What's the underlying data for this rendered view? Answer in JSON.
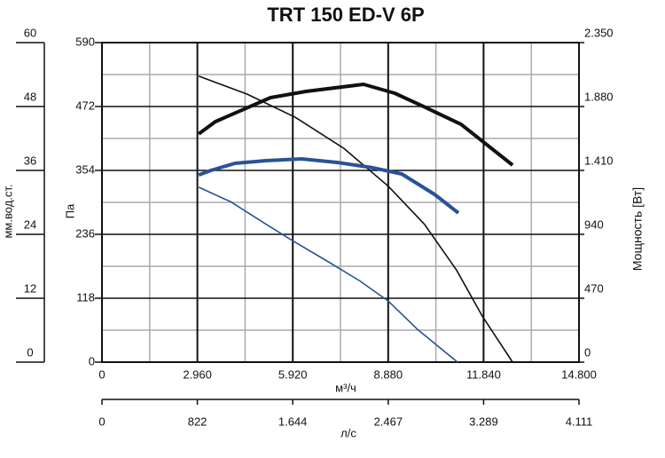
{
  "chart_data": {
    "type": "line",
    "title": "TRT 150 ED-V 6P",
    "xlabel": "м³/ч",
    "xlim": [
      0,
      14800
    ],
    "xticks": [
      0,
      {
        "value": 2960,
        "label": "2.960"
      },
      {
        "value": 5920,
        "label": "5.920"
      },
      {
        "value": 8880,
        "label": "8.880"
      },
      {
        "value": 11840,
        "label": "11.840"
      },
      {
        "value": 14800,
        "label": "14.800"
      }
    ],
    "x2label": "л/с",
    "x2lim": [
      0,
      4111
    ],
    "x2ticks": [
      0,
      822,
      {
        "value": 1644,
        "label": "1.644"
      },
      {
        "value": 2467,
        "label": "2.467"
      },
      {
        "value": 3289,
        "label": "3.289"
      },
      {
        "value": 4111,
        "label": "4.111"
      }
    ],
    "ylabel": "Па",
    "ylim": [
      0,
      590
    ],
    "yticks": [
      0,
      118,
      236,
      354,
      472,
      590
    ],
    "y3label": "мм.вод.ст.",
    "y3lim": [
      0,
      60
    ],
    "y3ticks": [
      0,
      12,
      24,
      36,
      48,
      60
    ],
    "y2label": "Мощность [Вт]",
    "y2lim": [
      0,
      2350
    ],
    "y2ticks": [
      0,
      470,
      940,
      {
        "value": 1410,
        "label": "1.410"
      },
      {
        "value": 1880,
        "label": "1.880"
      },
      {
        "value": 2350,
        "label": "2.350"
      }
    ],
    "grid": true,
    "series": [
      {
        "color": "#111111",
        "axis": "y",
        "x": [
          3000,
          4500,
          6000,
          7500,
          8880,
          10000,
          11000,
          11800,
          12740
        ],
        "values": [
          528,
          495,
          452,
          395,
          325,
          255,
          170,
          85,
          0
        ]
      },
      {
        "color": "#2a5298",
        "axis": "y",
        "x": [
          3000,
          4000,
          5000,
          5920,
          7000,
          8000,
          8880,
          9800,
          11030
        ],
        "values": [
          323,
          296,
          258,
          224,
          186,
          150,
          113,
          60,
          0
        ]
      },
      {
        "color": "#111111",
        "axis": "y2",
        "x": [
          3000,
          3520,
          5230,
          6330,
          8115,
          9080,
          10040,
          11140,
          12740
        ],
        "values": [
          1678,
          1769,
          1945,
          1991,
          2043,
          1978,
          1873,
          1749,
          1449
        ]
      },
      {
        "color": "#2a5298",
        "axis": "y2",
        "x": [
          3000,
          3380,
          4130,
          5090,
          6190,
          7290,
          8390,
          9300,
          10320,
          11060
        ],
        "values": [
          1377,
          1410,
          1462,
          1482,
          1495,
          1469,
          1430,
          1384,
          1234,
          1097
        ]
      }
    ]
  }
}
